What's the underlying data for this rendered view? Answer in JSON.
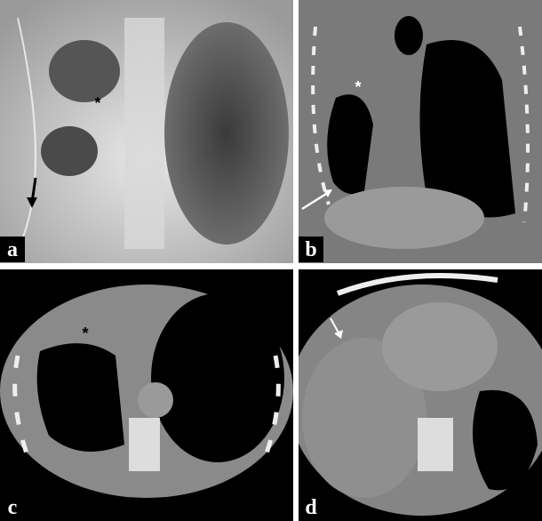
{
  "panels": [
    {
      "label": "a",
      "asterisk": "*"
    },
    {
      "label": "b",
      "asterisk": "*"
    },
    {
      "label": "c",
      "asterisk": "*"
    },
    {
      "label": "d"
    }
  ]
}
